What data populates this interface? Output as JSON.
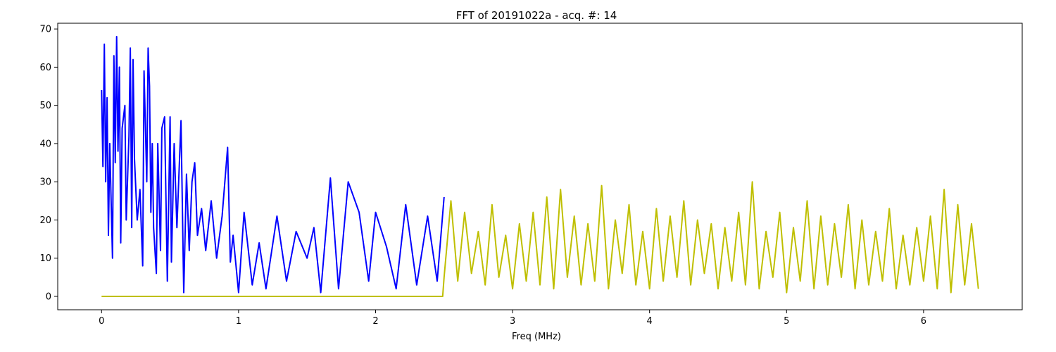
{
  "chart_data": {
    "type": "line",
    "title": "FFT of 20191022a - acq. #: 14",
    "xlabel": "Freq (MHz)",
    "ylabel": "",
    "xlim": [
      -0.32,
      6.72
    ],
    "ylim": [
      -3.5,
      71.5
    ],
    "xticks": [
      0,
      1,
      2,
      3,
      4,
      5,
      6
    ],
    "yticks": [
      0,
      10,
      20,
      30,
      40,
      50,
      60,
      70
    ],
    "grid": false,
    "legend": "none",
    "series": [
      {
        "color": "#0000ff",
        "x": [
          0.0,
          0.01,
          0.02,
          0.03,
          0.04,
          0.05,
          0.06,
          0.08,
          0.09,
          0.1,
          0.11,
          0.12,
          0.13,
          0.14,
          0.15,
          0.17,
          0.18,
          0.2,
          0.21,
          0.22,
          0.23,
          0.24,
          0.26,
          0.28,
          0.3,
          0.31,
          0.33,
          0.34,
          0.35,
          0.36,
          0.37,
          0.38,
          0.4,
          0.41,
          0.43,
          0.44,
          0.46,
          0.48,
          0.5,
          0.51,
          0.53,
          0.55,
          0.58,
          0.6,
          0.62,
          0.64,
          0.66,
          0.68,
          0.7,
          0.73,
          0.76,
          0.8,
          0.84,
          0.88,
          0.92,
          0.94,
          0.96,
          1.0,
          1.04,
          1.1,
          1.15,
          1.2,
          1.28,
          1.35,
          1.42,
          1.5,
          1.55,
          1.6,
          1.67,
          1.73,
          1.8,
          1.88,
          1.95,
          2.0,
          2.08,
          2.15,
          2.22,
          2.3,
          2.38,
          2.45,
          2.5
        ],
        "y": [
          54,
          34,
          66,
          30,
          52,
          16,
          40,
          10,
          63,
          35,
          68,
          38,
          60,
          14,
          44,
          50,
          20,
          42,
          65,
          18,
          62,
          36,
          20,
          28,
          8,
          59,
          30,
          65,
          55,
          22,
          40,
          18,
          6,
          40,
          12,
          44,
          47,
          4,
          47,
          9,
          40,
          18,
          46,
          1,
          32,
          12,
          30,
          35,
          16,
          23,
          12,
          25,
          10,
          21,
          39,
          9,
          16,
          1,
          22,
          3,
          14,
          2,
          21,
          4,
          17,
          10,
          18,
          1,
          31,
          2,
          30,
          22,
          4,
          22,
          13,
          2,
          24,
          3,
          21,
          4,
          26
        ]
      },
      {
        "color": "#bfbf00",
        "x": [
          0.0,
          0.5,
          1.0,
          1.5,
          2.0,
          2.49,
          2.5,
          2.55,
          2.6,
          2.65,
          2.7,
          2.75,
          2.8,
          2.85,
          2.9,
          2.95,
          3.0,
          3.05,
          3.1,
          3.15,
          3.2,
          3.25,
          3.3,
          3.35,
          3.4,
          3.45,
          3.5,
          3.55,
          3.6,
          3.65,
          3.7,
          3.75,
          3.8,
          3.85,
          3.9,
          3.95,
          4.0,
          4.05,
          4.1,
          4.15,
          4.2,
          4.25,
          4.3,
          4.35,
          4.4,
          4.45,
          4.5,
          4.55,
          4.6,
          4.65,
          4.7,
          4.75,
          4.8,
          4.85,
          4.9,
          4.95,
          5.0,
          5.05,
          5.1,
          5.15,
          5.2,
          5.25,
          5.3,
          5.35,
          5.4,
          5.45,
          5.5,
          5.55,
          5.6,
          5.65,
          5.7,
          5.75,
          5.8,
          5.85,
          5.9,
          5.95,
          6.0,
          6.05,
          6.1,
          6.15,
          6.2,
          6.25,
          6.3,
          6.35,
          6.4
        ],
        "y": [
          0,
          0,
          0,
          0,
          0,
          0,
          5,
          25,
          4,
          22,
          6,
          17,
          3,
          24,
          5,
          16,
          2,
          19,
          4,
          22,
          3,
          26,
          2,
          28,
          5,
          21,
          3,
          19,
          4,
          29,
          2,
          20,
          6,
          24,
          3,
          17,
          2,
          23,
          4,
          21,
          5,
          25,
          3,
          20,
          6,
          19,
          2,
          18,
          4,
          22,
          3,
          30,
          2,
          17,
          5,
          22,
          1,
          18,
          4,
          25,
          2,
          21,
          3,
          19,
          5,
          24,
          2,
          20,
          3,
          17,
          4,
          23,
          2,
          16,
          3,
          18,
          4,
          21,
          2,
          28,
          1,
          24,
          3,
          19,
          2
        ]
      }
    ]
  }
}
